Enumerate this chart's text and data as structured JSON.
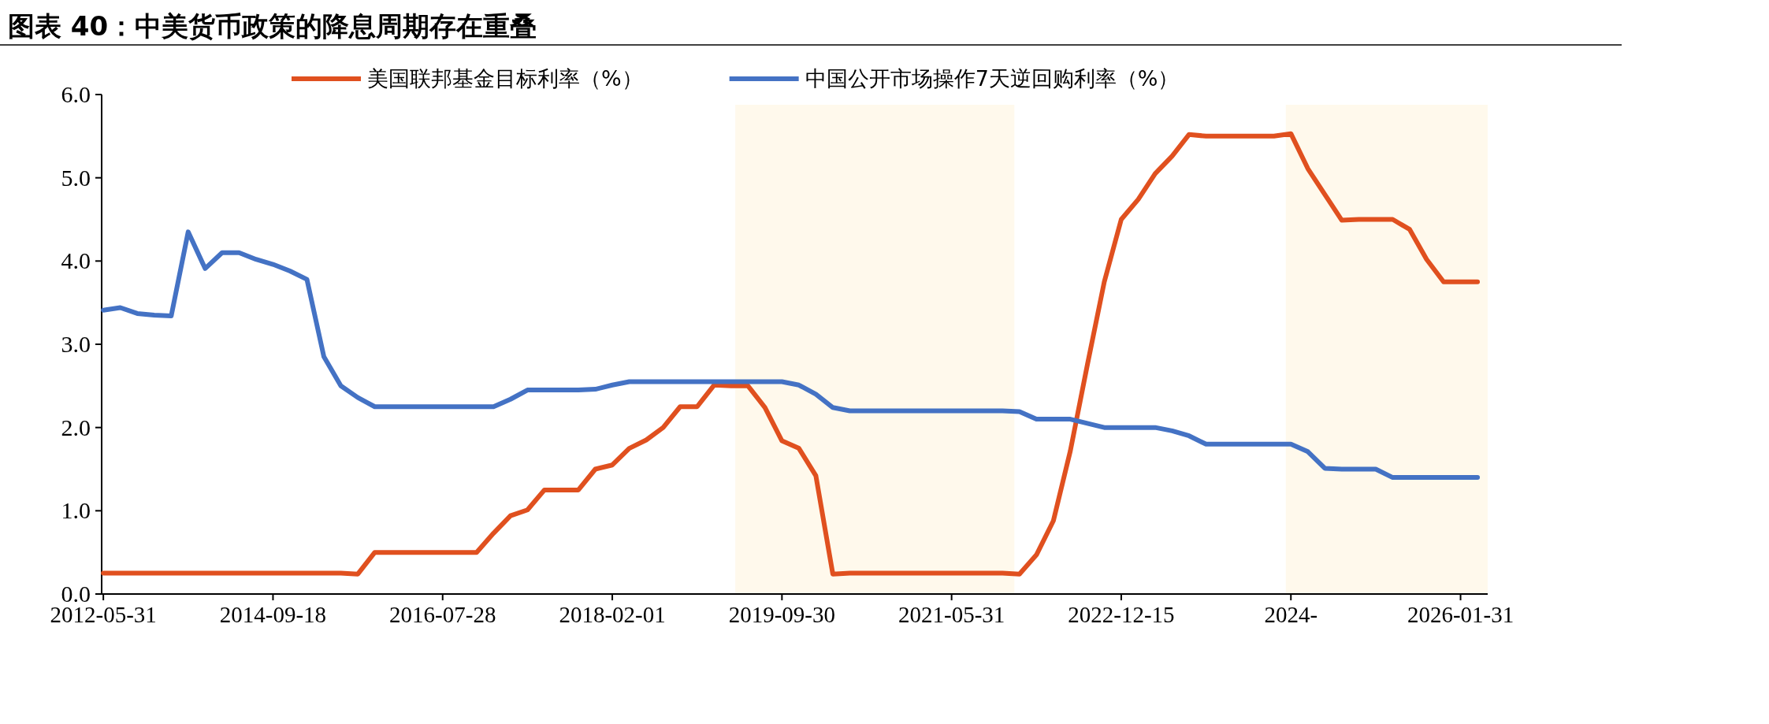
{
  "chart_data": {
    "type": "line",
    "title": "图表 40：中美货币政策的降息周期存在重叠",
    "categories": [
      "2012-05-31",
      null,
      null,
      null,
      null,
      null,
      null,
      null,
      null,
      null,
      "2014-09-18",
      null,
      null,
      null,
      null,
      null,
      null,
      null,
      null,
      null,
      "2016-07-28",
      null,
      null,
      null,
      null,
      null,
      null,
      null,
      null,
      null,
      "2018-02-01",
      null,
      null,
      null,
      null,
      null,
      null,
      null,
      null,
      null,
      "2019-09-30",
      null,
      null,
      null,
      null,
      null,
      null,
      null,
      null,
      null,
      "2021-05-31",
      null,
      null,
      null,
      null,
      null,
      null,
      null,
      null,
      null,
      "2022-12-15",
      null,
      null,
      null,
      null,
      null,
      null,
      null,
      null,
      null,
      "2024-",
      null,
      null,
      null,
      null,
      null,
      null,
      null,
      null,
      null,
      "2026-01-31",
      null
    ],
    "series": [
      {
        "name": "美国联邦基金目标利率（%）",
        "color": "#e0501f",
        "values": [
          0.25,
          0.25,
          0.25,
          0.25,
          0.25,
          0.25,
          0.25,
          0.25,
          0.25,
          0.25,
          0.25,
          0.25,
          0.25,
          0.25,
          0.25,
          0.24,
          0.5,
          0.5,
          0.5,
          0.5,
          0.5,
          0.5,
          0.5,
          0.73,
          0.94,
          1.01,
          1.25,
          1.25,
          1.25,
          1.5,
          1.55,
          1.75,
          1.85,
          2.0,
          2.25,
          2.25,
          2.51,
          2.5,
          2.5,
          2.24,
          1.84,
          1.75,
          1.42,
          0.24,
          0.25,
          0.25,
          0.25,
          0.25,
          0.25,
          0.25,
          0.25,
          0.25,
          0.25,
          0.25,
          0.24,
          0.47,
          0.88,
          1.72,
          2.75,
          3.75,
          4.5,
          4.74,
          5.05,
          5.26,
          5.52,
          5.5,
          5.5,
          5.5,
          5.5,
          5.5,
          5.53,
          5.11,
          4.8,
          4.49,
          4.5,
          4.5,
          4.5,
          4.38,
          4.02,
          3.75,
          3.75,
          3.75
        ]
      },
      {
        "name": "中国公开市场操作7天逆回购利率（%）",
        "color": "#4472c4",
        "values": [
          3.41,
          3.44,
          3.37,
          3.35,
          3.34,
          4.35,
          3.91,
          4.1,
          4.1,
          4.02,
          3.96,
          3.88,
          3.78,
          2.85,
          2.5,
          2.36,
          2.25,
          2.25,
          2.25,
          2.25,
          2.25,
          2.25,
          2.25,
          2.25,
          2.34,
          2.45,
          2.45,
          2.45,
          2.45,
          2.46,
          2.51,
          2.55,
          2.55,
          2.55,
          2.55,
          2.55,
          2.55,
          2.55,
          2.55,
          2.55,
          2.55,
          2.51,
          2.4,
          2.24,
          2.2,
          2.2,
          2.2,
          2.2,
          2.2,
          2.2,
          2.2,
          2.2,
          2.2,
          2.2,
          2.19,
          2.1,
          2.1,
          2.1,
          2.05,
          2.0,
          2.0,
          2.0,
          2.0,
          1.96,
          1.9,
          1.8,
          1.8,
          1.8,
          1.8,
          1.8,
          1.8,
          1.71,
          1.51,
          1.5,
          1.5,
          1.5,
          1.4,
          1.4,
          1.4,
          1.4,
          1.4,
          1.4
        ]
      }
    ],
    "ylim": [
      0,
      6
    ],
    "yticks": [
      {
        "value": 0,
        "label": "0.0"
      },
      {
        "value": 1,
        "label": "1.0"
      },
      {
        "value": 2,
        "label": "2.0"
      },
      {
        "value": 3,
        "label": "3.0"
      },
      {
        "value": 4,
        "label": "4.0"
      },
      {
        "value": 5,
        "label": "5.0"
      },
      {
        "value": 6,
        "label": "6.0"
      }
    ],
    "legend": "top",
    "grid": false,
    "marker": "none",
    "line_style": "solid"
  }
}
